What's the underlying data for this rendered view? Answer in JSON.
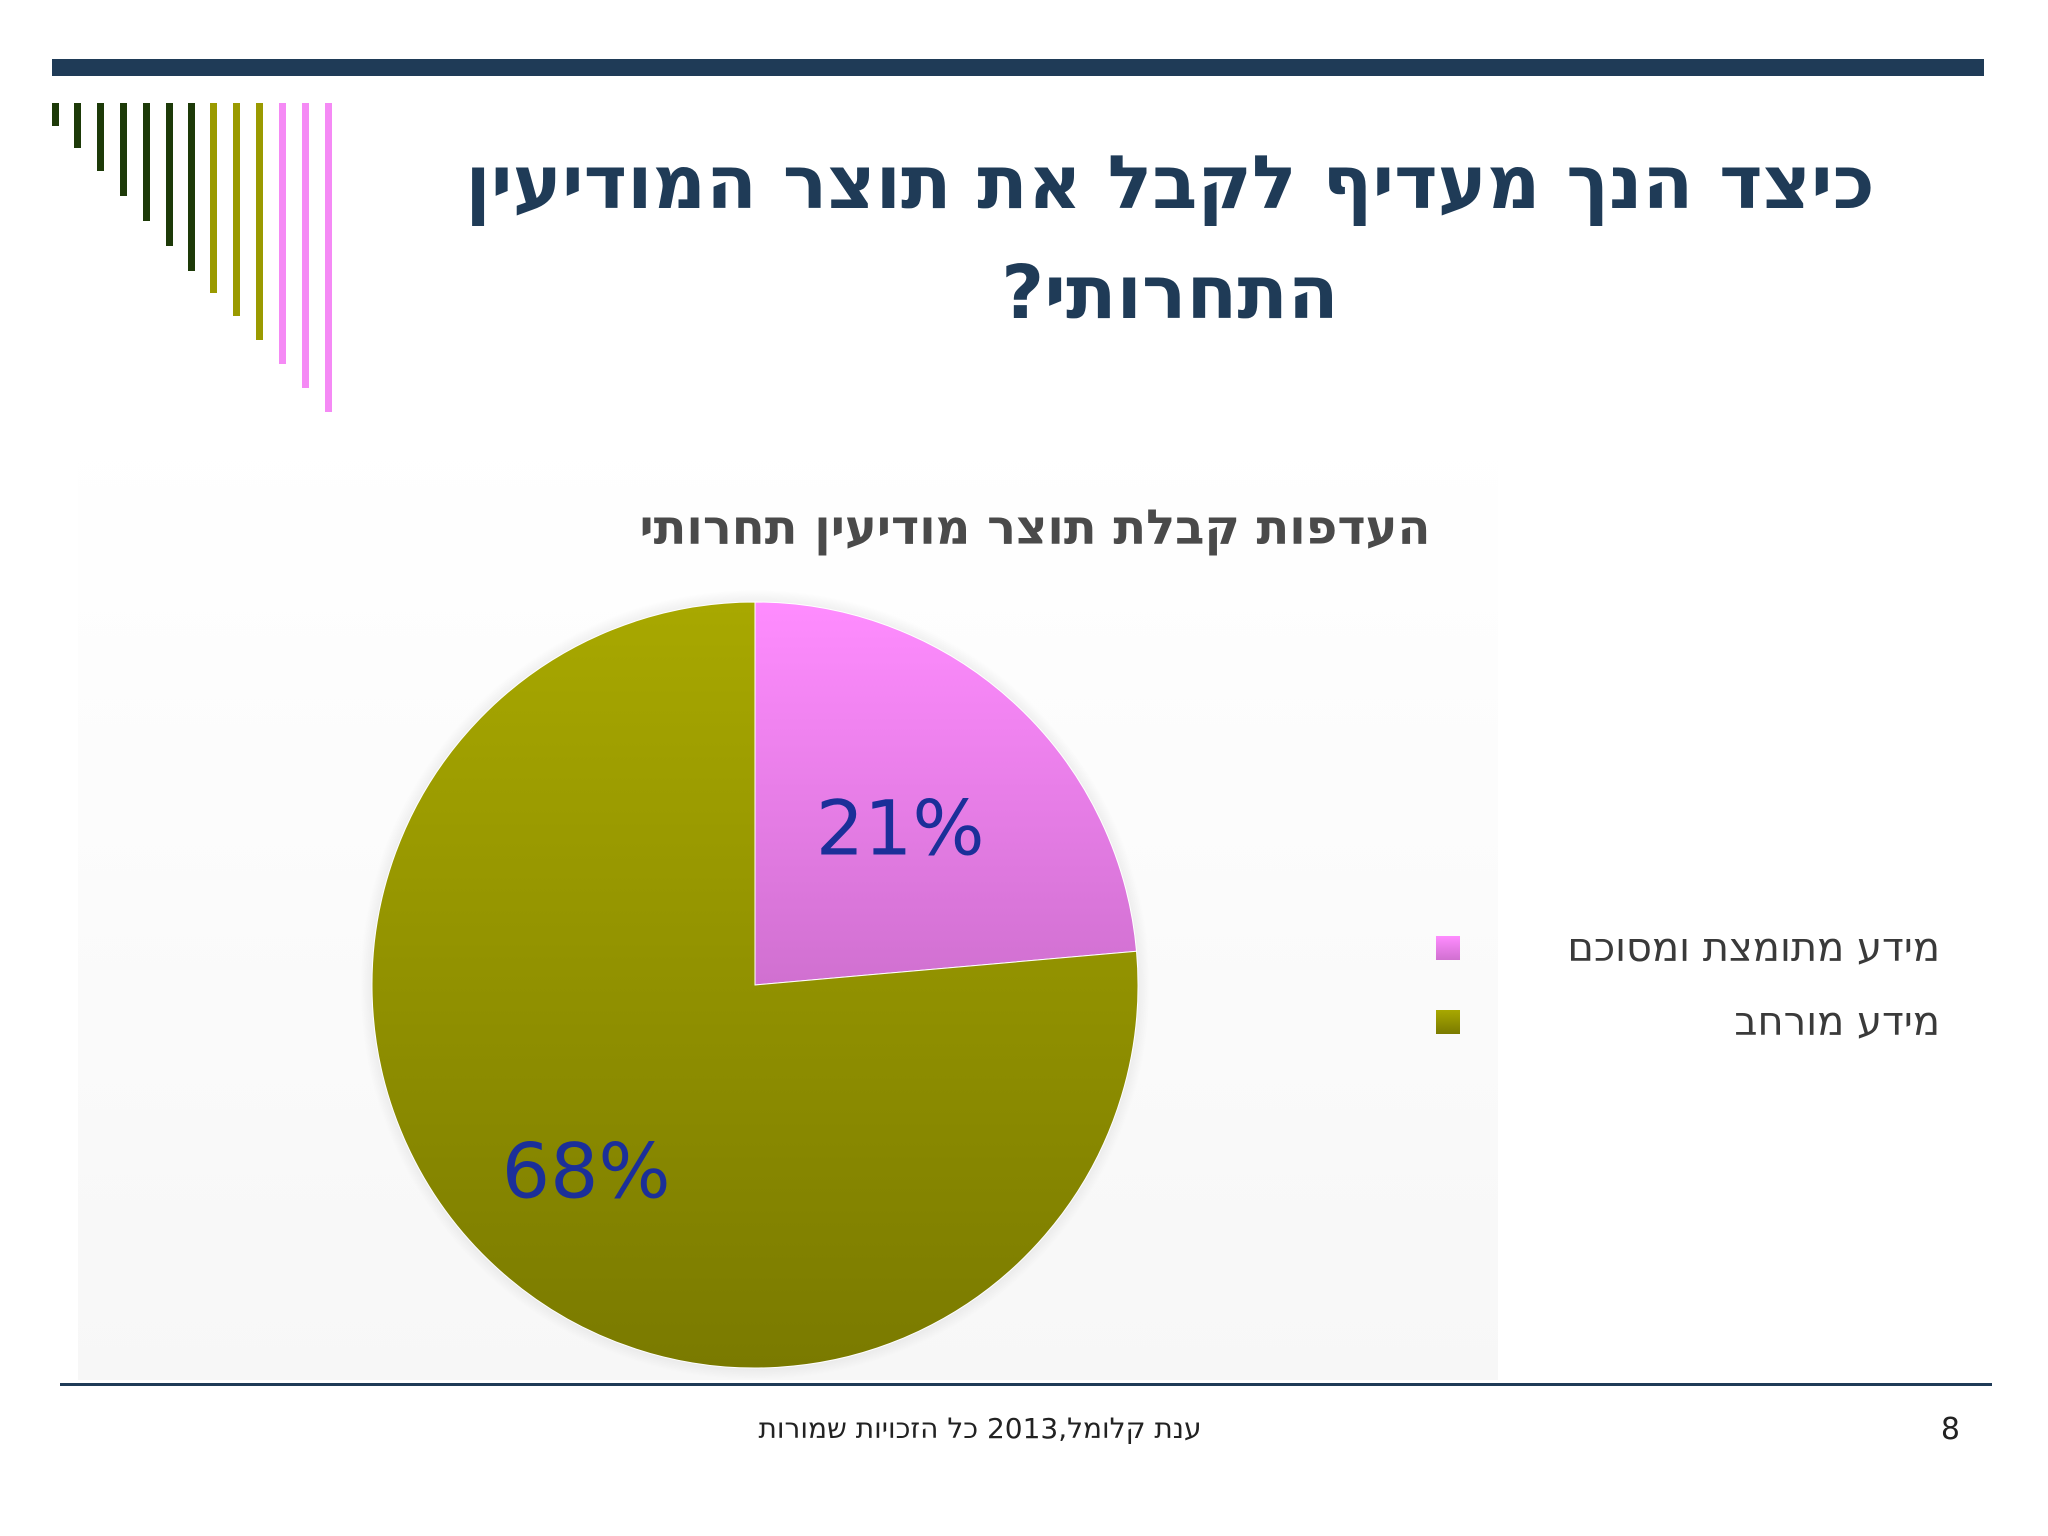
{
  "slide": {
    "title_line1": "כיצד הנך מעדיף לקבל את תוצר המודיעין",
    "title_line2": "התחרותי?",
    "footer": "ענת קלומל,2013 כל הזכויות שמורות",
    "page_number": "8",
    "colors": {
      "rule": "#1f3b57",
      "title": "#1f3b57",
      "dark_green": "#1d3a08",
      "olive": "#9a9a00",
      "pink": "#f58af5"
    }
  },
  "chart_data": {
    "type": "pie",
    "title": "העדפות קבלת תוצר מודיעין תחרותי",
    "slices": [
      {
        "label": "מידע מתומצת ומסוכם",
        "value": 21,
        "display": "21%",
        "color": "#f082f0"
      },
      {
        "label": "מידע מורחב",
        "value": 68,
        "display": "68%",
        "color": "#9a9a00"
      }
    ],
    "data_label_color": "#1b2f99",
    "legend_position": "right"
  }
}
